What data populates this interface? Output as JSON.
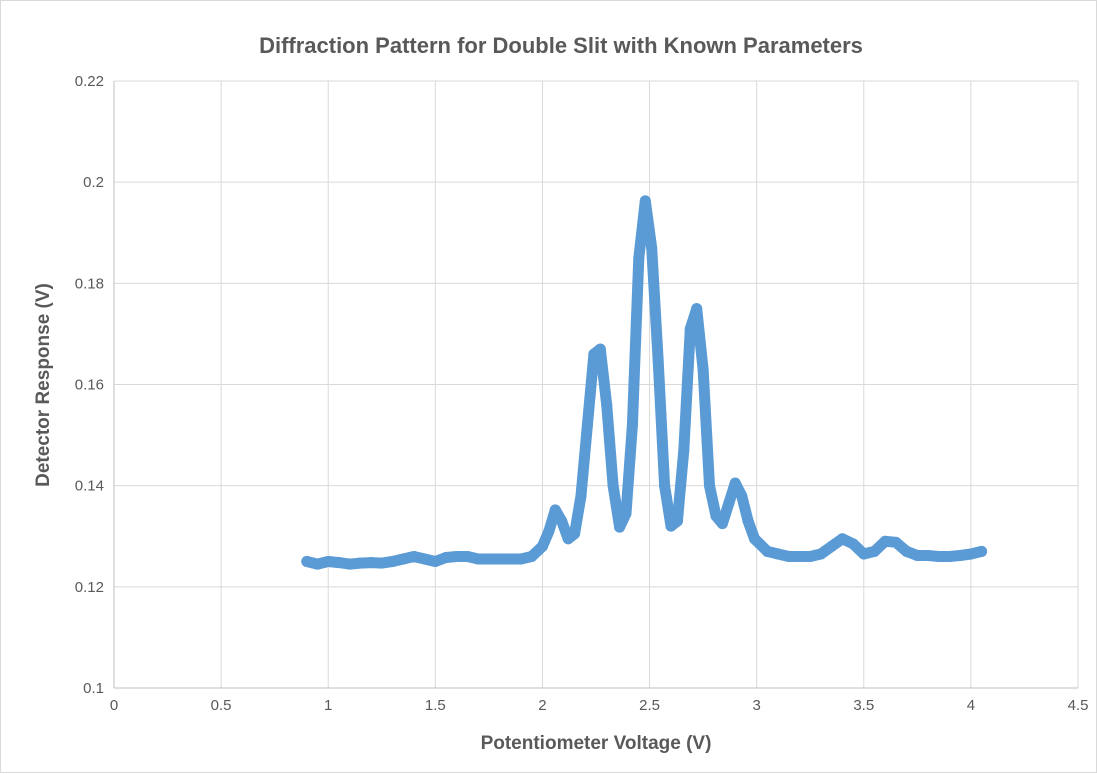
{
  "chart_data": {
    "type": "scatter",
    "title": "Diffraction Pattern for Double Slit with Known Parameters",
    "xlabel": "Potentiometer Voltage (V)",
    "ylabel": "Detector Response (V)",
    "xlim": [
      0,
      4.5
    ],
    "ylim": [
      0.1,
      0.22
    ],
    "x_ticks": [
      "0",
      "0.5",
      "1",
      "1.5",
      "2",
      "2.5",
      "3",
      "3.5",
      "4",
      "4.5"
    ],
    "y_ticks": [
      "0.1",
      "0.12",
      "0.14",
      "0.16",
      "0.18",
      "0.2",
      "0.22"
    ],
    "grid": true,
    "legend": "none",
    "series_color": "#5b9bd5",
    "series": [
      {
        "x": [
          0.9,
          0.95,
          1.0,
          1.05,
          1.1,
          1.15,
          1.2,
          1.25,
          1.3,
          1.35,
          1.4,
          1.45,
          1.5,
          1.55,
          1.6,
          1.65,
          1.7,
          1.75,
          1.8,
          1.85,
          1.9,
          1.95,
          2.0,
          2.03,
          2.06,
          2.09,
          2.12,
          2.15,
          2.18,
          2.21,
          2.24,
          2.27,
          2.3,
          2.33,
          2.36,
          2.39,
          2.42,
          2.45,
          2.48,
          2.51,
          2.54,
          2.57,
          2.6,
          2.63,
          2.66,
          2.69,
          2.72,
          2.75,
          2.78,
          2.81,
          2.84,
          2.87,
          2.9,
          2.93,
          2.96,
          2.99,
          3.05,
          3.1,
          3.15,
          3.2,
          3.25,
          3.3,
          3.35,
          3.4,
          3.45,
          3.5,
          3.55,
          3.6,
          3.65,
          3.7,
          3.75,
          3.8,
          3.85,
          3.9,
          3.95,
          4.0,
          4.05
        ],
        "y": [
          0.125,
          0.1245,
          0.125,
          0.1248,
          0.1245,
          0.1247,
          0.1248,
          0.1247,
          0.125,
          0.1255,
          0.126,
          0.1255,
          0.125,
          0.1258,
          0.126,
          0.126,
          0.1255,
          0.1255,
          0.1255,
          0.1255,
          0.1255,
          0.126,
          0.128,
          0.131,
          0.1352,
          0.133,
          0.1295,
          0.1305,
          0.138,
          0.152,
          0.166,
          0.167,
          0.156,
          0.14,
          0.1318,
          0.1345,
          0.152,
          0.185,
          0.1963,
          0.187,
          0.165,
          0.14,
          0.132,
          0.133,
          0.147,
          0.171,
          0.175,
          0.163,
          0.14,
          0.134,
          0.1325,
          0.1365,
          0.1405,
          0.138,
          0.133,
          0.1295,
          0.127,
          0.1265,
          0.126,
          0.126,
          0.126,
          0.1265,
          0.128,
          0.1295,
          0.1285,
          0.1265,
          0.127,
          0.129,
          0.1288,
          0.127,
          0.1262,
          0.1262,
          0.126,
          0.126,
          0.1262,
          0.1265,
          0.127
        ]
      }
    ]
  }
}
